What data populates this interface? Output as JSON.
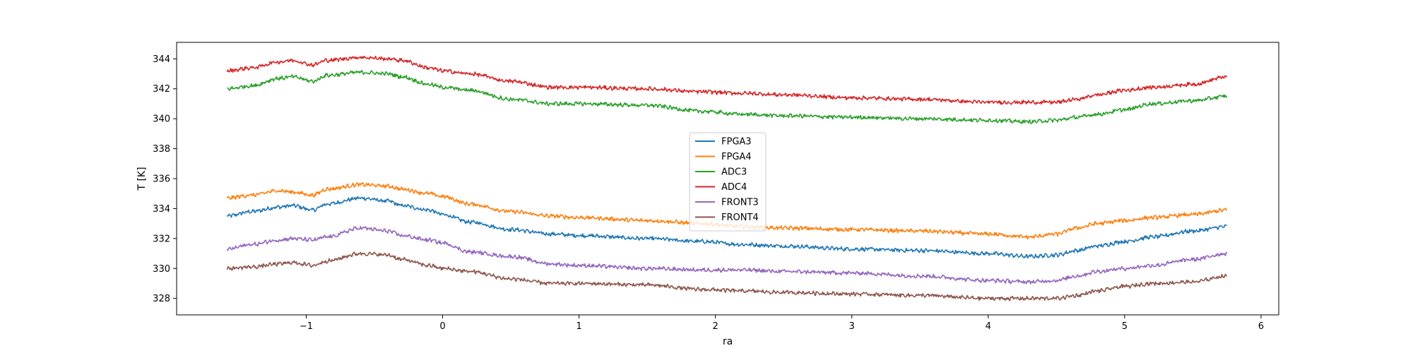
{
  "chart_data": {
    "type": "line",
    "title": "",
    "xlabel": "ra",
    "ylabel": "T [K]",
    "xlim": [
      -1.95,
      6.13
    ],
    "ylim": [
      326.9,
      345.1
    ],
    "x_ticks": [
      -1,
      0,
      1,
      2,
      3,
      4,
      5,
      6
    ],
    "y_ticks": [
      328,
      330,
      332,
      334,
      336,
      338,
      340,
      342,
      344
    ],
    "x_tick_labels": [
      "−1",
      "0",
      "1",
      "2",
      "3",
      "4",
      "5",
      "6"
    ],
    "y_tick_labels": [
      "328",
      "330",
      "332",
      "334",
      "336",
      "338",
      "340",
      "342",
      "344"
    ],
    "grid": false,
    "legend_position": "center",
    "x": [
      -1.58,
      -1.4,
      -1.2,
      -1.1,
      -0.95,
      -0.85,
      -0.6,
      -0.4,
      -0.3,
      -0.1,
      0.0,
      0.2,
      0.5,
      0.8,
      1.0,
      1.5,
      1.9,
      2.2,
      2.5,
      3.0,
      3.5,
      4.0,
      4.3,
      4.5,
      4.65,
      4.8,
      5.0,
      5.2,
      5.5,
      5.75
    ],
    "series": [
      {
        "name": "FPGA3",
        "color": "#1f77b4",
        "values": [
          333.5,
          333.8,
          334.1,
          334.2,
          333.9,
          334.3,
          334.7,
          334.5,
          334.2,
          333.9,
          333.6,
          333.1,
          332.6,
          332.3,
          332.2,
          332.0,
          331.8,
          331.6,
          331.5,
          331.3,
          331.2,
          331.0,
          330.8,
          330.9,
          331.2,
          331.5,
          331.8,
          332.1,
          332.5,
          332.8
        ]
      },
      {
        "name": "FPGA4",
        "color": "#ff7f0e",
        "values": [
          334.7,
          334.9,
          335.2,
          335.1,
          334.9,
          335.3,
          335.6,
          335.5,
          335.3,
          335.0,
          334.8,
          334.3,
          333.8,
          333.5,
          333.4,
          333.2,
          333.0,
          332.8,
          332.7,
          332.6,
          332.5,
          332.3,
          332.1,
          332.3,
          332.7,
          333.0,
          333.2,
          333.4,
          333.6,
          333.9
        ]
      },
      {
        "name": "ADC3",
        "color": "#2ca02c",
        "values": [
          342.0,
          342.2,
          342.7,
          342.8,
          342.5,
          342.9,
          343.1,
          343.0,
          342.8,
          342.3,
          342.1,
          341.9,
          341.3,
          341.0,
          341.0,
          340.9,
          340.5,
          340.3,
          340.2,
          340.1,
          340.0,
          339.9,
          339.8,
          339.9,
          340.1,
          340.3,
          340.6,
          341.0,
          341.2,
          341.5
        ]
      },
      {
        "name": "ADC4",
        "color": "#d62728",
        "values": [
          343.2,
          343.4,
          343.8,
          343.9,
          343.6,
          343.9,
          344.1,
          344.0,
          343.9,
          343.4,
          343.2,
          343.0,
          342.5,
          342.1,
          342.1,
          342.0,
          341.8,
          341.7,
          341.6,
          341.4,
          341.3,
          341.1,
          341.1,
          341.1,
          341.3,
          341.6,
          341.9,
          342.1,
          342.3,
          342.8
        ]
      },
      {
        "name": "FRONT3",
        "color": "#9467bd",
        "values": [
          331.3,
          331.6,
          331.9,
          332.0,
          331.9,
          332.1,
          332.7,
          332.5,
          332.2,
          331.9,
          331.7,
          331.1,
          330.8,
          330.3,
          330.2,
          330.0,
          329.9,
          329.9,
          329.8,
          329.7,
          329.5,
          329.2,
          329.1,
          329.2,
          329.5,
          329.8,
          330.0,
          330.2,
          330.6,
          331.0
        ]
      },
      {
        "name": "FRONT4",
        "color": "#8c564b",
        "values": [
          330.0,
          330.1,
          330.3,
          330.4,
          330.2,
          330.5,
          331.0,
          330.9,
          330.6,
          330.2,
          330.0,
          329.8,
          329.3,
          329.0,
          329.0,
          328.9,
          328.6,
          328.5,
          328.4,
          328.3,
          328.2,
          328.0,
          328.0,
          328.0,
          328.2,
          328.5,
          328.8,
          329.0,
          329.1,
          329.5
        ]
      }
    ]
  }
}
